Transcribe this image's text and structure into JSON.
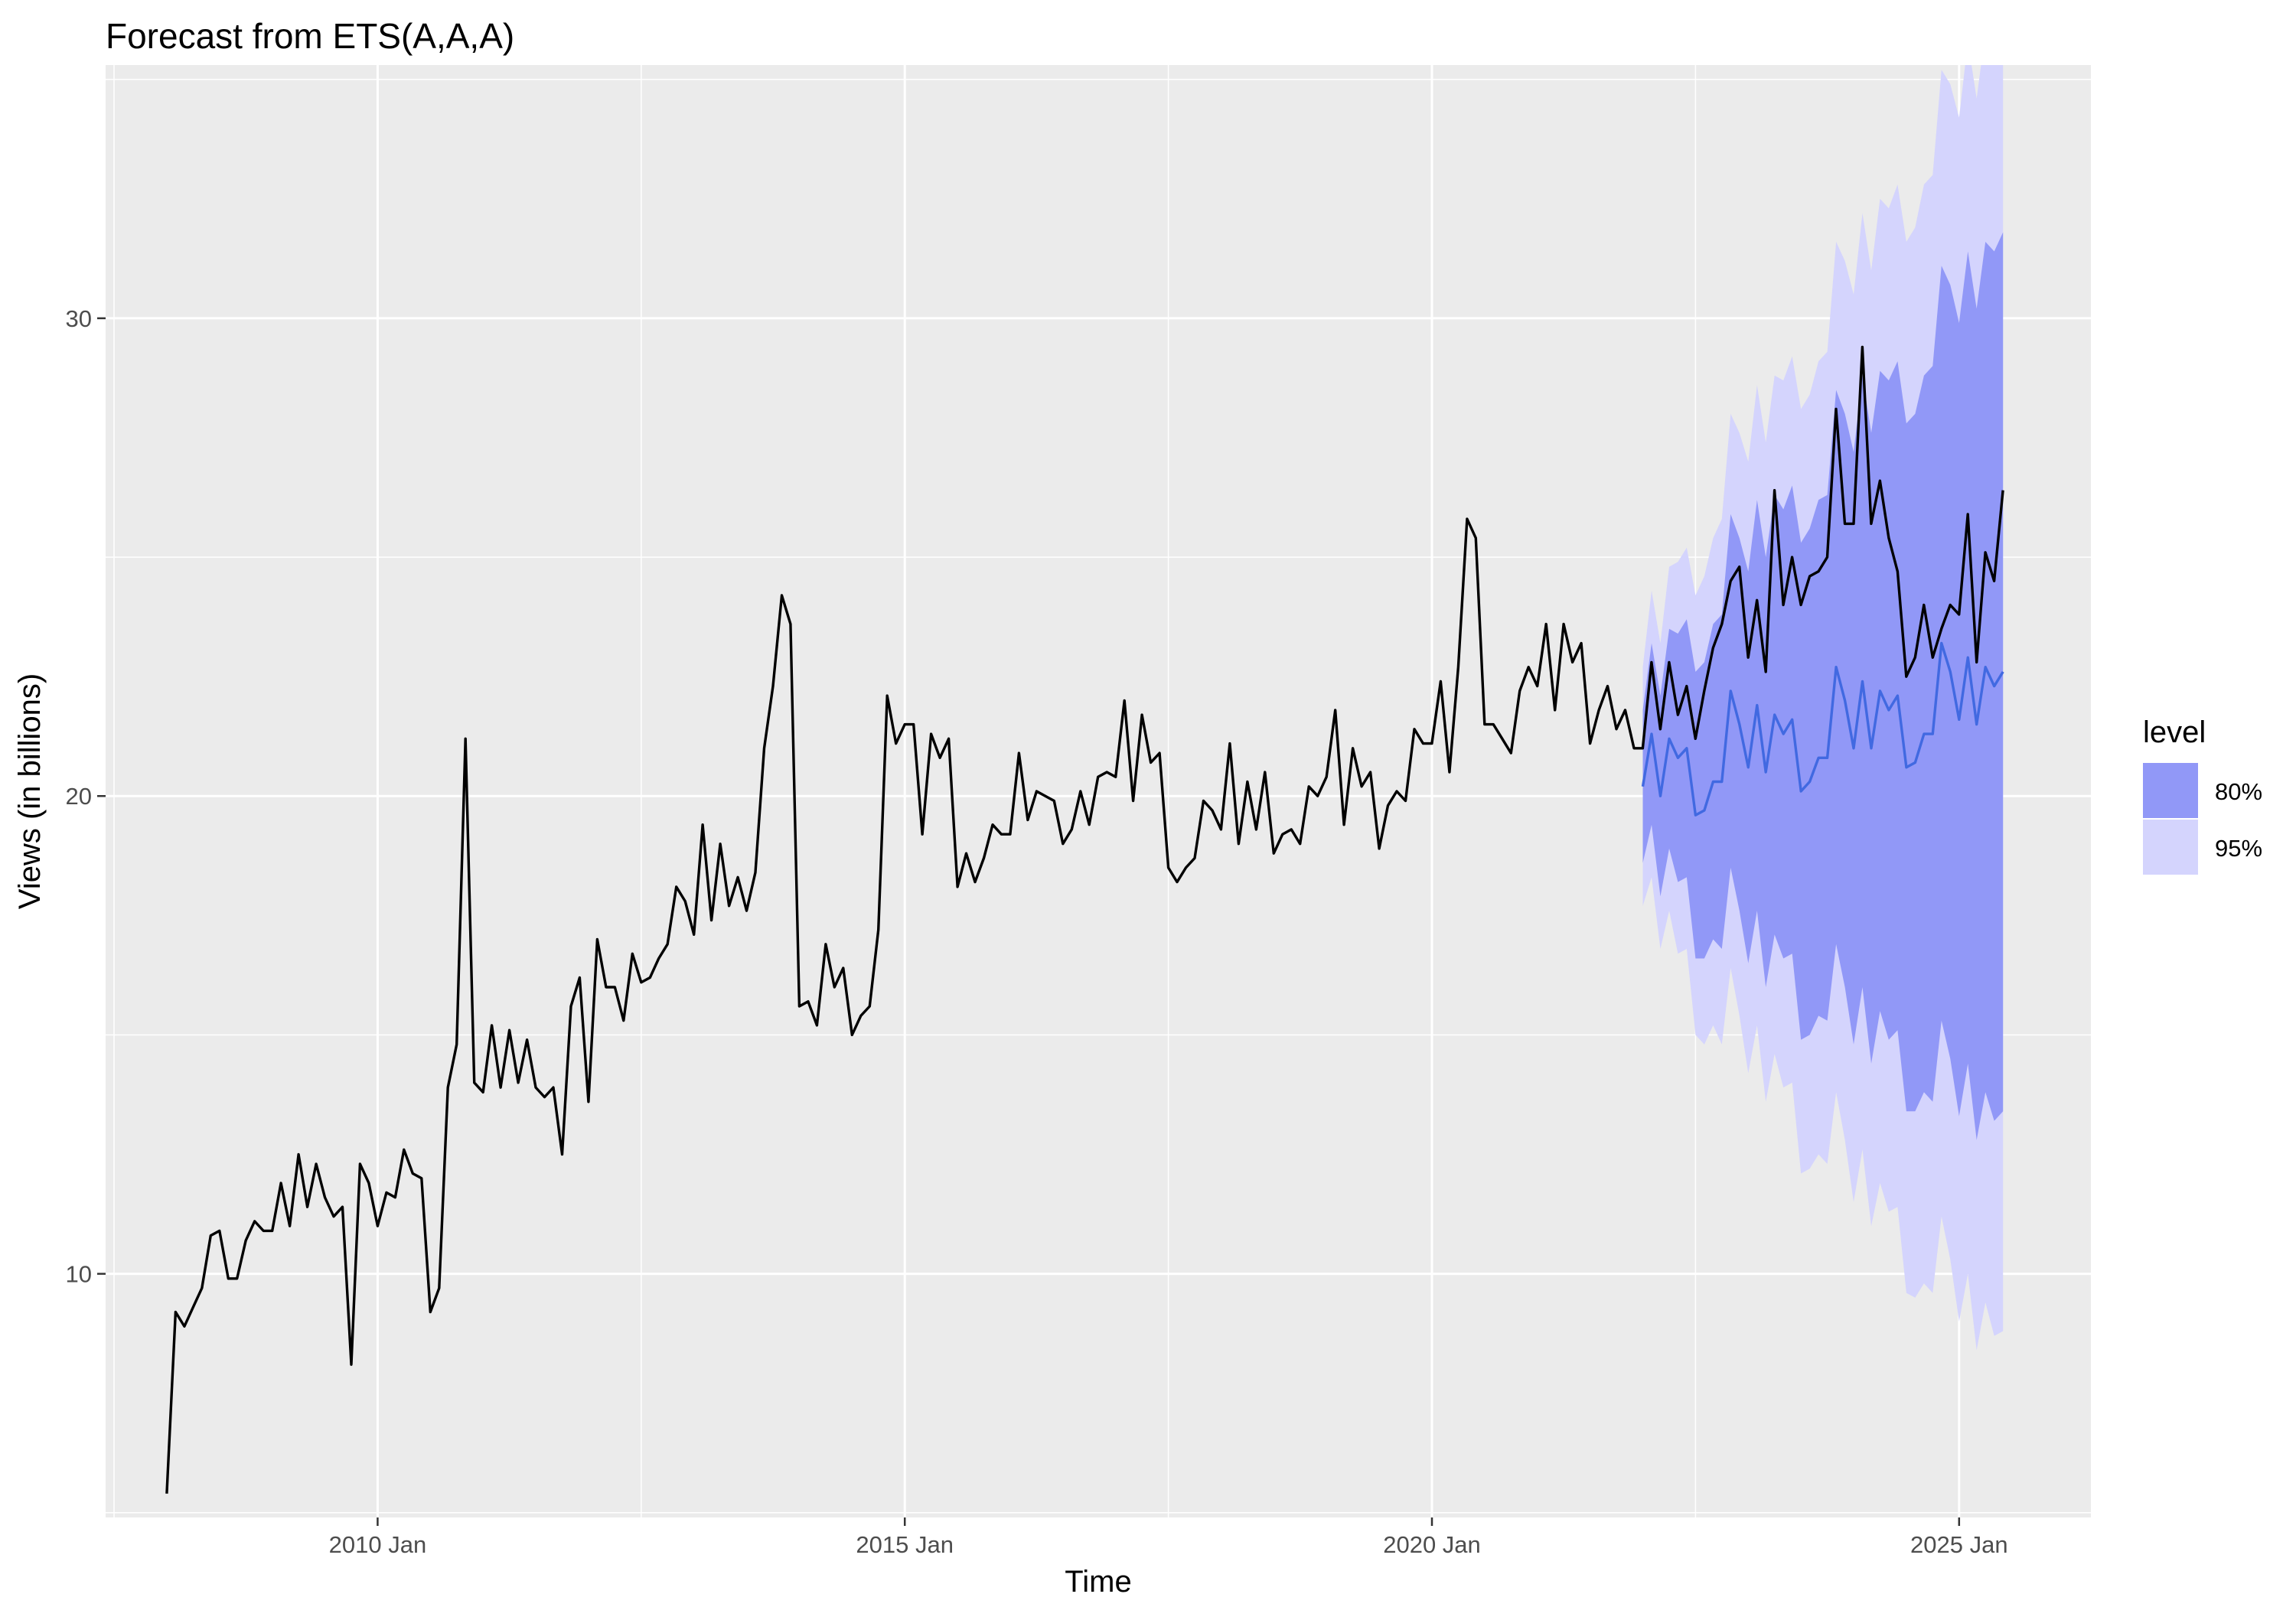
{
  "chart_data": {
    "type": "line",
    "title": "Forecast from ETS(A,A,A)",
    "xlabel": "Time",
    "ylabel": "Views (in billions)",
    "x_unit": "decimal year",
    "xlim": [
      2007.42,
      2026.25
    ],
    "ylim": [
      4.9,
      35.3
    ],
    "x_ticks": [
      {
        "value": 2010.0,
        "label": "2010 Jan"
      },
      {
        "value": 2015.0,
        "label": "2015 Jan"
      },
      {
        "value": 2020.0,
        "label": "2020 Jan"
      },
      {
        "value": 2025.0,
        "label": "2025 Jan"
      }
    ],
    "y_ticks": [
      {
        "value": 10,
        "label": "10"
      },
      {
        "value": 20,
        "label": "20"
      },
      {
        "value": 30,
        "label": "30"
      }
    ],
    "grid": true,
    "legend": {
      "title": "level",
      "position": "right",
      "entries": [
        {
          "label": "80%",
          "color": "#9198f7"
        },
        {
          "label": "95%",
          "color": "#d4d4fd"
        }
      ]
    },
    "colors": {
      "panel_background": "#ebebeb",
      "grid": "#ffffff",
      "actual_line": "#000000",
      "forecast_line": "#4169e1",
      "band_80": "#9198f7",
      "band_95": "#d4d4fd"
    },
    "series": [
      {
        "role": "actual",
        "x_start": 2008.0,
        "x_step": 0.08333,
        "values": [
          5.4,
          9.2,
          8.9,
          9.3,
          9.7,
          10.8,
          10.9,
          9.9,
          9.9,
          10.7,
          11.1,
          10.9,
          10.9,
          11.9,
          11.0,
          12.5,
          11.4,
          12.3,
          11.6,
          11.2,
          11.4,
          8.1,
          12.3,
          11.9,
          11.0,
          11.7,
          11.6,
          12.6,
          12.1,
          12.0,
          9.2,
          9.7,
          13.9,
          14.8,
          21.2,
          14.0,
          13.8,
          15.2,
          13.9,
          15.1,
          14.0,
          14.9,
          13.9,
          13.7,
          13.9,
          12.5,
          15.6,
          16.2,
          13.6,
          17.0,
          16.0,
          16.0,
          15.3,
          16.7,
          16.1,
          16.2,
          16.6,
          16.9,
          18.1,
          17.8,
          17.1,
          19.4,
          17.4,
          19.0,
          17.7,
          18.3,
          17.6,
          18.4,
          21.0,
          22.3,
          24.2,
          23.6,
          15.6,
          15.7,
          15.2,
          16.9,
          16.0,
          16.4,
          15.0,
          15.4,
          15.6,
          17.2,
          22.1,
          21.1,
          21.5,
          21.5,
          19.2,
          21.3,
          20.8,
          21.2,
          18.1,
          18.8,
          18.2,
          18.7,
          19.4,
          19.2,
          19.2,
          20.9,
          19.5,
          20.1,
          20.0,
          19.9,
          19.0,
          19.3,
          20.1,
          19.4,
          20.4,
          20.5,
          20.4,
          22.0,
          19.9,
          21.7,
          20.7,
          20.9,
          18.5,
          18.2,
          18.5,
          18.7,
          19.9,
          19.7,
          19.3,
          21.1,
          19.0,
          20.3,
          19.3,
          20.5,
          18.8,
          19.2,
          19.3,
          19.0,
          20.2,
          20.0,
          20.4,
          21.8,
          19.4,
          21.0,
          20.2,
          20.5,
          18.9,
          19.8,
          20.1,
          19.9,
          21.4,
          21.1,
          21.1,
          22.4,
          20.5,
          22.7,
          25.8,
          25.4,
          21.5,
          21.5,
          21.2,
          20.9,
          22.2,
          22.7,
          22.3,
          23.6,
          21.8,
          23.6,
          22.8,
          23.2,
          21.1,
          21.8,
          22.3,
          21.4,
          21.8,
          21.0,
          21.0,
          22.8,
          21.4,
          22.8,
          21.7,
          22.3,
          21.2,
          22.2,
          23.1,
          23.6,
          24.5,
          24.8,
          22.9,
          24.1,
          22.6,
          26.4,
          24.0,
          25.0,
          24.0,
          24.6,
          24.7,
          25.0,
          28.1,
          25.7,
          25.7,
          29.4,
          25.7,
          26.6,
          25.4,
          24.7,
          22.5,
          22.9,
          24.0,
          22.9,
          23.5,
          24.0,
          23.8,
          25.9,
          22.8,
          25.1,
          24.5,
          26.4
        ]
      },
      {
        "role": "point-forecast",
        "x_start": 2022.0,
        "x_step": 0.08333,
        "values": [
          20.2,
          21.3,
          20.0,
          21.2,
          20.8,
          21.0,
          19.6,
          19.7,
          20.3,
          20.3,
          22.2,
          21.5,
          20.6,
          21.9,
          20.5,
          21.7,
          21.3,
          21.6,
          20.1,
          20.3,
          20.8,
          20.8,
          22.7,
          22.0,
          21.0,
          22.4,
          21.0,
          22.2,
          21.8,
          22.1,
          20.6,
          20.7,
          21.3,
          21.3,
          23.2,
          22.6,
          21.6,
          22.9,
          21.5,
          22.7,
          22.3,
          22.6
        ],
        "lower_80": [
          18.6,
          19.4,
          17.9,
          18.9,
          18.2,
          18.3,
          16.6,
          16.6,
          17.0,
          16.8,
          18.5,
          17.6,
          16.5,
          17.6,
          16.0,
          17.1,
          16.6,
          16.7,
          14.9,
          15.0,
          15.4,
          15.3,
          16.9,
          16.0,
          14.8,
          16.0,
          14.4,
          15.5,
          14.9,
          15.1,
          13.4,
          13.4,
          13.8,
          13.6,
          15.3,
          14.5,
          13.3,
          14.4,
          12.8,
          13.8,
          13.2,
          13.4
        ],
        "upper_80": [
          21.8,
          23.2,
          22.1,
          23.5,
          23.4,
          23.7,
          22.6,
          22.8,
          23.6,
          23.8,
          25.9,
          25.4,
          24.7,
          26.2,
          25.0,
          26.3,
          26.0,
          26.5,
          25.3,
          25.6,
          26.2,
          26.3,
          28.5,
          28.0,
          27.2,
          28.8,
          27.6,
          28.9,
          28.7,
          29.1,
          27.8,
          28.0,
          28.8,
          29.0,
          31.1,
          30.7,
          29.9,
          31.4,
          30.2,
          31.6,
          31.4,
          31.8
        ],
        "lower_95": [
          17.7,
          18.3,
          16.8,
          17.6,
          16.7,
          16.8,
          15.0,
          14.8,
          15.2,
          14.8,
          16.4,
          15.4,
          14.2,
          15.2,
          13.6,
          14.6,
          13.9,
          14.0,
          12.1,
          12.2,
          12.5,
          12.3,
          13.8,
          12.8,
          11.5,
          12.6,
          11.0,
          11.9,
          11.3,
          11.4,
          9.6,
          9.5,
          9.8,
          9.6,
          11.2,
          10.3,
          9.0,
          10.0,
          8.4,
          9.4,
          8.7,
          8.8
        ],
        "upper_95": [
          22.7,
          24.3,
          23.2,
          24.8,
          24.9,
          25.2,
          24.2,
          24.6,
          25.4,
          25.8,
          28.0,
          27.6,
          27.0,
          28.6,
          27.4,
          28.8,
          28.7,
          29.2,
          28.1,
          28.4,
          29.1,
          29.3,
          31.6,
          31.2,
          30.5,
          32.2,
          31.0,
          32.5,
          32.3,
          32.8,
          31.6,
          31.9,
          32.8,
          33.0,
          35.2,
          34.9,
          34.2,
          35.8,
          34.6,
          36.0,
          35.9,
          36.4
        ]
      }
    ]
  }
}
